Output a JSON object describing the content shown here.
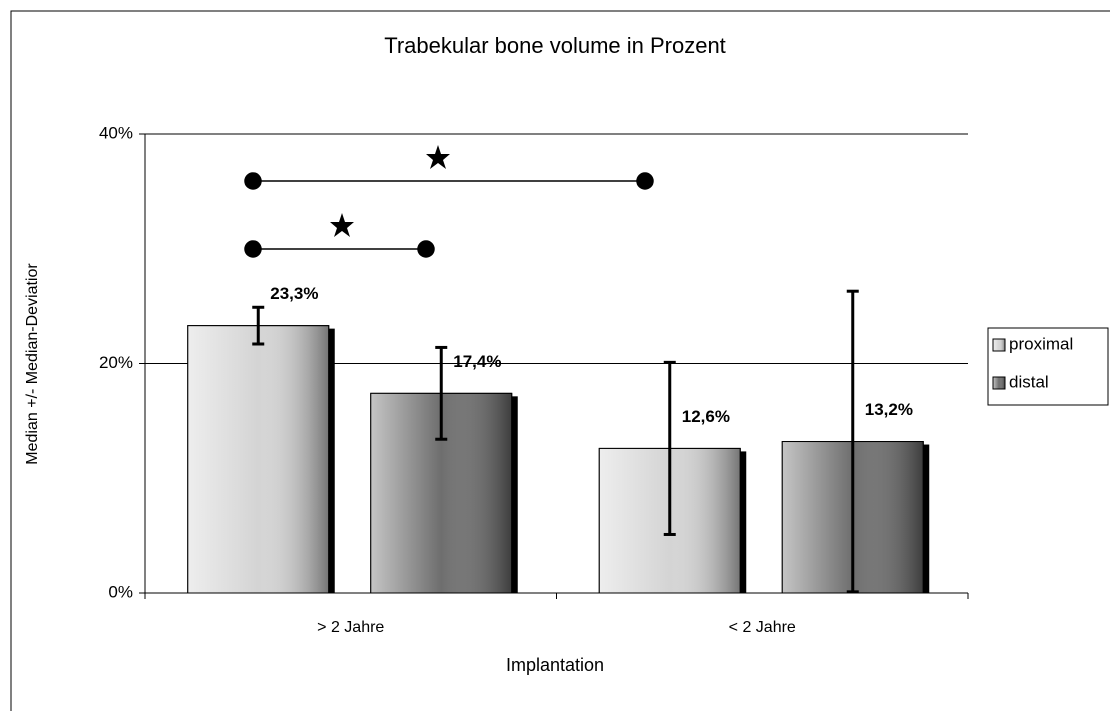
{
  "chart_data": {
    "type": "bar",
    "title": "Trabekular bone volume in Prozent",
    "x_label": "Implantation",
    "y_label": "Median +/- Median-Deviatior",
    "categories": [
      "> 2 Jahre",
      "< 2 Jahre"
    ],
    "series": [
      {
        "name": "proximal",
        "color": "#d4d4d4",
        "values": [
          23.3,
          12.6
        ],
        "value_labels": [
          "23,3%",
          "12,6%"
        ],
        "errors": [
          1.6,
          7.5
        ]
      },
      {
        "name": "distal",
        "color": "#6e6e6e",
        "values": [
          17.4,
          13.2
        ],
        "value_labels": [
          "17,4%",
          "13,2%"
        ],
        "errors": [
          4.0,
          13.1
        ]
      }
    ],
    "ylim": [
      0,
      40
    ],
    "yticks": [
      {
        "value": 0,
        "label": "0%"
      },
      {
        "value": 20,
        "label": "20%"
      },
      {
        "value": 40,
        "label": "40%"
      }
    ],
    "grid": true,
    "legend": "right"
  }
}
